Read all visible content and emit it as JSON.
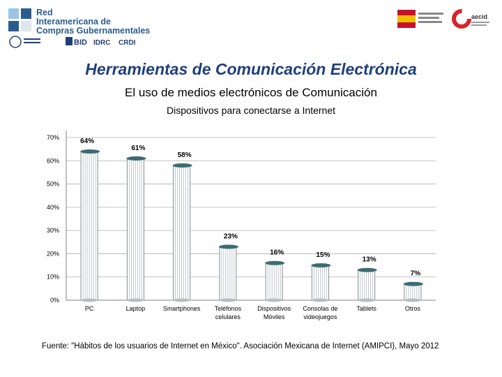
{
  "header": {
    "org_lines": [
      "Red",
      "Interamericana de",
      "Compras Gubernamentales"
    ],
    "partner_logos": [
      "OEA",
      "BID",
      "IDRC",
      "CRDI"
    ],
    "right_logos": [
      "Gobierno de España",
      "aecid"
    ]
  },
  "main_title": "Herramientas de Comunicación Electrónica",
  "subtitle": "El uso de medios electrónicos de Comunicación",
  "chart_data": {
    "type": "bar",
    "title": "Dispositivos para conectarse a Internet",
    "categories": [
      "PC",
      "Laptop",
      "Smartphones",
      "Teléfonos celulares",
      "Dispositivos Móviles",
      "Consolas de videojuegos",
      "Tablets",
      "Otros"
    ],
    "category_lines": [
      [
        "PC"
      ],
      [
        "Laptop"
      ],
      [
        "Smartphones"
      ],
      [
        "Teléfonos",
        "celulares"
      ],
      [
        "Dispositivos",
        "Móviles"
      ],
      [
        "Consolas de",
        "videojuegos"
      ],
      [
        "Tablets"
      ],
      [
        "Otros"
      ]
    ],
    "values": [
      64,
      61,
      58,
      23,
      16,
      15,
      13,
      7
    ],
    "data_labels": [
      "64%",
      "61%",
      "58%",
      "23%",
      "16%",
      "15%",
      "13%",
      "7%"
    ],
    "yticks": [
      "0%",
      "10%",
      "20%",
      "30%",
      "40%",
      "50%",
      "60%",
      "70%"
    ],
    "ylim": [
      0,
      70
    ],
    "grid": true,
    "bar_color": "#ffffff",
    "bar_stroke": "#7f8c8d",
    "cap_color": "#3d6b73"
  },
  "source": "Fuente: \"Hábitos de los usuarios de Internet en México\". Asociación Mexicana de Internet (AMIPCI), Mayo 2012"
}
